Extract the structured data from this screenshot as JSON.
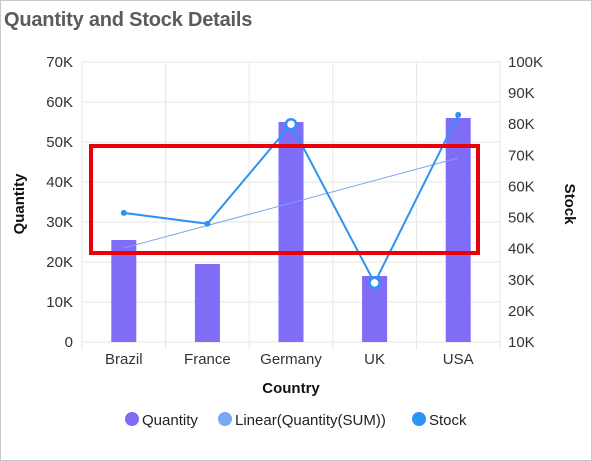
{
  "title": "Quantity and Stock Details",
  "chart_data": {
    "type": "bar",
    "title": "Quantity and Stock Details",
    "categories": [
      "Brazil",
      "France",
      "Germany",
      "UK",
      "USA"
    ],
    "xlabel": "Country",
    "ylabel": "Quantity",
    "y2label": "Stock",
    "ylim": [
      0,
      70000
    ],
    "y2lim": [
      10000,
      100000
    ],
    "y_ticks": [
      "0",
      "10K",
      "20K",
      "30K",
      "40K",
      "50K",
      "60K",
      "70K"
    ],
    "y2_ticks": [
      "10K",
      "20K",
      "30K",
      "40K",
      "50K",
      "60K",
      "70K",
      "80K",
      "90K",
      "100K"
    ],
    "series": [
      {
        "name": "Quantity",
        "type": "bar",
        "axis": "left",
        "color": "#7f6cf7",
        "values": [
          25500,
          19500,
          55000,
          16500,
          56000
        ]
      },
      {
        "name": "Linear(Quantity(SUM))",
        "type": "trendline",
        "axis": "left",
        "color": "#7aa6f3",
        "values": [
          23500,
          28000,
          32000,
          37000,
          46000
        ]
      },
      {
        "name": "Stock",
        "type": "line",
        "axis": "right",
        "color": "#2f93f1",
        "values": [
          51500,
          48000,
          80000,
          29000,
          83000
        ]
      }
    ],
    "grid": true,
    "legend_position": "bottom",
    "annotation": {
      "type": "highlight-rectangle",
      "color": "#e8000b"
    }
  }
}
